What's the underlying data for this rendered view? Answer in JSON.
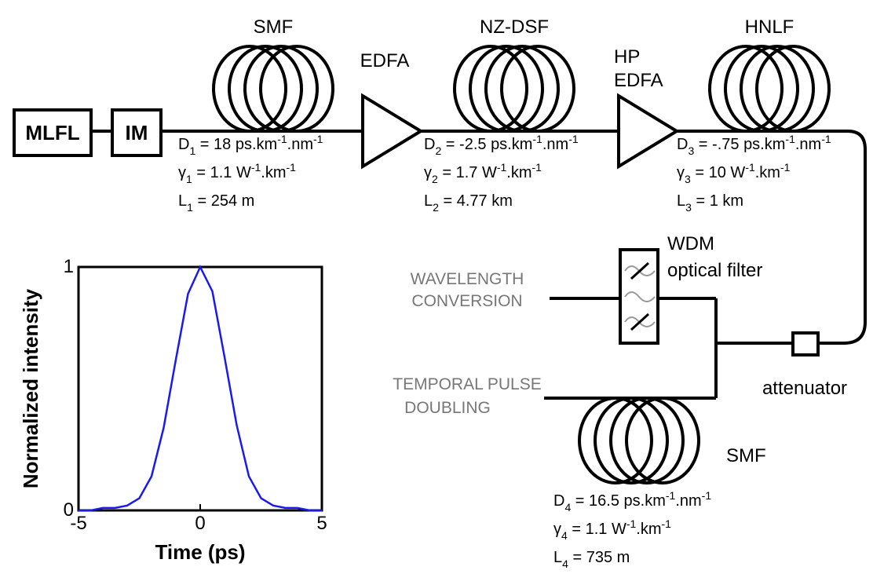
{
  "labels": {
    "mlfl": "MLFL",
    "im": "IM",
    "smf1": "SMF",
    "edfa": "EDFA",
    "nzdsf": "NZ-DSF",
    "hp": "HP",
    "hp_edfa": "EDFA",
    "hnlf": "HNLF",
    "wdm": "WDM",
    "optical_filter": "optical filter",
    "wavelength": "WAVELENGTH",
    "conversion": "CONVERSION",
    "temporal": "TEMPORAL PULSE",
    "doubling": "DOUBLING",
    "attenuator": "attenuator",
    "smf4": "SMF"
  },
  "fiber_params": [
    [
      [
        {
          "text": "D"
        },
        {
          "sub": "1"
        },
        {
          "text": " = 18 ps.km"
        },
        {
          "sup": "-1"
        },
        {
          "text": ".nm"
        },
        {
          "sup": "-1"
        }
      ],
      [
        {
          "text": "γ"
        },
        {
          "sub": "1"
        },
        {
          "text": " = 1.1 W"
        },
        {
          "sup": "-1"
        },
        {
          "text": ".km"
        },
        {
          "sup": "-1"
        }
      ],
      [
        {
          "text": "L"
        },
        {
          "sub": "1"
        },
        {
          "text": " = 254 m"
        }
      ]
    ],
    [
      [
        {
          "text": "D"
        },
        {
          "sub": "2"
        },
        {
          "text": " = -2.5 ps.km"
        },
        {
          "sup": "-1"
        },
        {
          "text": ".nm"
        },
        {
          "sup": "-1"
        }
      ],
      [
        {
          "text": "γ"
        },
        {
          "sub": "2"
        },
        {
          "text": " = 1.7 W"
        },
        {
          "sup": "-1"
        },
        {
          "text": ".km"
        },
        {
          "sup": "-1"
        }
      ],
      [
        {
          "text": "L"
        },
        {
          "sub": "2"
        },
        {
          "text": " = 4.77 km"
        }
      ]
    ],
    [
      [
        {
          "text": "D"
        },
        {
          "sub": "3"
        },
        {
          "text": " = -.75 ps.km"
        },
        {
          "sup": "-1"
        },
        {
          "text": ".nm"
        },
        {
          "sup": "-1"
        }
      ],
      [
        {
          "text": "γ"
        },
        {
          "sub": "3"
        },
        {
          "text": " = 10 W"
        },
        {
          "sup": "-1"
        },
        {
          "text": ".km"
        },
        {
          "sup": "-1"
        }
      ],
      [
        {
          "text": "L"
        },
        {
          "sub": "3"
        },
        {
          "text": " = 1 km"
        }
      ]
    ],
    [
      [
        {
          "text": "D"
        },
        {
          "sub": "4"
        },
        {
          "text": " = 16.5 ps.km"
        },
        {
          "sup": "-1"
        },
        {
          "text": ".nm"
        },
        {
          "sup": "-1"
        }
      ],
      [
        {
          "text": "γ"
        },
        {
          "sub": "4"
        },
        {
          "text": " = 1.1 W"
        },
        {
          "sup": "-1"
        },
        {
          "text": ".km"
        },
        {
          "sup": "-1"
        }
      ],
      [
        {
          "text": "L"
        },
        {
          "sub": "4"
        },
        {
          "text": " = 735 m"
        }
      ]
    ]
  ],
  "chart_data": {
    "type": "line",
    "x": [
      -5,
      -4.5,
      -4,
      -3.5,
      -3,
      -2.5,
      -2,
      -1.5,
      -1,
      -0.5,
      0,
      0.5,
      1,
      1.5,
      2,
      2.5,
      3,
      3.5,
      4,
      4.5,
      5
    ],
    "series": [
      {
        "color": "#1a1aee",
        "values": [
          0,
          0,
          0.01,
          0.01,
          0.02,
          0.05,
          0.14,
          0.34,
          0.62,
          0.89,
          1,
          0.9,
          0.63,
          0.35,
          0.14,
          0.05,
          0.02,
          0.01,
          0.01,
          0,
          0
        ]
      }
    ],
    "xlim": [
      -5,
      5
    ],
    "ylim": [
      0,
      1
    ],
    "xticks": [
      -5,
      0,
      5
    ],
    "yticks": [
      0,
      1
    ],
    "x_label": "Time (ps)",
    "y_label": "Normalized intensity"
  }
}
